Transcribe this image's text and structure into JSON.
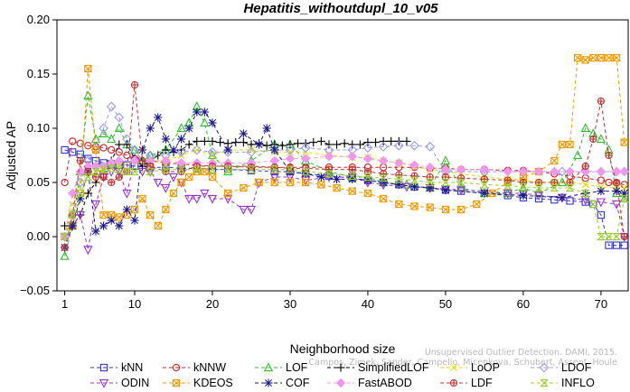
{
  "chart_data": {
    "type": "line",
    "title": "Hepatitis_withoutdupl_10_v05",
    "xlabel": "Neighborhood size",
    "ylabel": "Adjusted AP",
    "xlim": [
      0,
      73.5
    ],
    "ylim": [
      -0.05,
      0.2
    ],
    "xticks": [
      1,
      10,
      20,
      30,
      40,
      50,
      60,
      70
    ],
    "yticks": [
      -0.05,
      0.0,
      0.05,
      0.1,
      0.15,
      0.2
    ],
    "ytick_labels": [
      "−0.05",
      "0.00",
      "0.05",
      "0.10",
      "0.15",
      "0.20"
    ],
    "grid": false,
    "legend_position": "bottom",
    "watermark_lines": [
      "Unsupervised Outlier Detection. DAMI, 2015.",
      "Campos, Zimek, Sander, Campello, Micenkova, Schubert, Assent, Houle"
    ],
    "series": [
      {
        "name": "kNN",
        "color": "#3333cc",
        "marker": "square",
        "x": [
          1,
          2,
          3,
          4,
          5,
          6,
          7,
          8,
          9,
          10,
          12,
          14,
          16,
          18,
          20,
          22,
          25,
          28,
          30,
          32,
          35,
          38,
          40,
          42,
          44,
          46,
          48,
          50,
          52,
          55,
          58,
          60,
          62,
          64,
          66,
          68,
          69,
          70,
          71,
          72,
          73
        ],
        "y": [
          0.08,
          0.078,
          0.076,
          0.072,
          0.07,
          0.068,
          0.067,
          0.066,
          0.066,
          0.065,
          0.064,
          0.064,
          0.063,
          0.063,
          0.062,
          0.062,
          0.061,
          0.06,
          0.06,
          0.058,
          0.056,
          0.054,
          0.052,
          0.05,
          0.048,
          0.046,
          0.045,
          0.043,
          0.042,
          0.04,
          0.038,
          0.036,
          0.035,
          0.034,
          0.033,
          0.032,
          0.03,
          0.02,
          -0.008,
          -0.008,
          -0.008
        ]
      },
      {
        "name": "kNNW",
        "color": "#cc2222",
        "marker": "circle",
        "x": [
          1,
          2,
          3,
          4,
          5,
          6,
          7,
          8,
          9,
          10,
          12,
          14,
          16,
          18,
          20,
          22,
          25,
          28,
          30,
          32,
          35,
          38,
          40,
          42,
          44,
          46,
          48,
          50,
          52,
          55,
          58,
          60,
          62,
          64,
          66,
          68,
          70,
          71,
          72,
          73
        ],
        "y": [
          0.05,
          0.088,
          0.086,
          0.084,
          0.083,
          0.082,
          0.08,
          0.078,
          0.075,
          0.072,
          0.07,
          0.068,
          0.067,
          0.066,
          0.065,
          0.065,
          0.065,
          0.064,
          0.064,
          0.064,
          0.064,
          0.064,
          0.064,
          0.064,
          0.064,
          0.064,
          0.063,
          0.063,
          0.062,
          0.062,
          0.061,
          0.061,
          0.06,
          0.058,
          0.056,
          0.054,
          0.052,
          0.05,
          0.049,
          0.048
        ]
      },
      {
        "name": "LOF",
        "color": "#33bb33",
        "marker": "triangle",
        "x": [
          1,
          2,
          3,
          4,
          5,
          6,
          7,
          8,
          9,
          10,
          11,
          12,
          14,
          16,
          17,
          18,
          19,
          20,
          22,
          25,
          28,
          30,
          32,
          35,
          38,
          40,
          42,
          45,
          48,
          50,
          52,
          55,
          58,
          60,
          62,
          65,
          67,
          68,
          69,
          70,
          71,
          72,
          73
        ],
        "y": [
          -0.018,
          0.01,
          0.06,
          0.13,
          0.09,
          0.095,
          0.09,
          0.1,
          0.085,
          0.08,
          0.07,
          0.075,
          0.08,
          0.1,
          0.105,
          0.12,
          0.105,
          0.075,
          0.06,
          0.07,
          0.085,
          0.085,
          0.07,
          0.06,
          0.055,
          0.055,
          0.05,
          0.048,
          0.045,
          0.07,
          0.045,
          0.04,
          0.04,
          0.045,
          0.04,
          0.05,
          0.075,
          0.1,
          0.095,
          0.09,
          0.08,
          0.04,
          0.035
        ]
      },
      {
        "name": "SimplifiedLOF",
        "color": "#000000",
        "marker": "plus",
        "x": [
          1,
          2,
          3,
          4,
          5,
          6,
          7,
          8,
          9,
          10,
          11,
          12,
          13,
          14,
          15,
          16,
          17,
          18,
          19,
          20,
          21,
          22,
          23,
          24,
          25,
          26,
          27,
          28,
          29,
          30,
          31,
          32,
          33,
          34,
          35,
          36,
          37,
          38,
          39,
          40,
          41,
          42,
          43,
          44,
          45
        ],
        "y": [
          0.01,
          0.01,
          0.02,
          0.04,
          0.05,
          0.06,
          0.07,
          0.085,
          0.085,
          0.072,
          0.065,
          0.07,
          0.075,
          0.08,
          0.078,
          0.08,
          0.085,
          0.088,
          0.088,
          0.088,
          0.087,
          0.086,
          0.087,
          0.087,
          0.085,
          0.086,
          0.084,
          0.085,
          0.084,
          0.085,
          0.086,
          0.086,
          0.087,
          0.088,
          0.085,
          0.085,
          0.086,
          0.085,
          0.085,
          0.087,
          0.087,
          0.088,
          0.088,
          0.088,
          0.088
        ]
      },
      {
        "name": "LoOP",
        "color": "#dddd00",
        "marker": "x",
        "x": [
          1,
          2,
          3,
          4,
          5,
          6,
          7,
          8,
          10,
          12,
          14,
          16,
          18,
          20,
          22,
          25,
          28,
          30,
          32,
          35,
          38,
          40,
          42,
          44,
          46,
          48,
          50,
          52,
          55,
          58,
          60,
          62,
          64,
          66,
          68,
          70,
          72,
          73
        ],
        "y": [
          0.0,
          0.03,
          0.05,
          0.06,
          0.06,
          0.06,
          0.065,
          0.065,
          0.07,
          0.068,
          0.07,
          0.075,
          0.08,
          0.075,
          0.08,
          0.08,
          0.078,
          0.078,
          0.078,
          0.075,
          0.073,
          0.073,
          0.07,
          0.068,
          0.065,
          0.062,
          0.06,
          0.058,
          0.055,
          0.053,
          0.052,
          0.05,
          0.05,
          0.05,
          0.048,
          0.046,
          0.045,
          0.045
        ]
      },
      {
        "name": "LDOF",
        "color": "#9999ee",
        "marker": "diamond",
        "x": [
          1,
          2,
          3,
          4,
          5,
          6,
          7,
          8,
          9,
          10,
          12,
          14,
          16,
          18,
          20,
          22,
          25,
          28,
          30,
          32,
          35,
          38,
          40,
          42,
          44,
          46,
          48,
          50,
          55,
          60,
          65,
          68,
          70,
          72,
          73
        ],
        "y": [
          0.0,
          0.02,
          0.05,
          0.07,
          0.08,
          0.1,
          0.12,
          0.11,
          0.09,
          0.08,
          0.075,
          0.075,
          0.078,
          0.08,
          0.078,
          0.078,
          0.078,
          0.08,
          0.08,
          0.082,
          0.08,
          0.08,
          0.082,
          0.083,
          0.084,
          0.084,
          0.083,
          0.06,
          0.06,
          0.06,
          0.06,
          0.06,
          0.06,
          0.06,
          0.06
        ]
      },
      {
        "name": "ODIN",
        "color": "#9933cc",
        "marker": "triangle-down",
        "x": [
          1,
          2,
          3,
          4,
          5,
          6,
          7,
          8,
          9,
          10,
          11,
          12,
          13,
          14,
          15,
          16,
          17,
          18,
          19,
          20,
          22,
          24,
          25,
          26,
          28,
          30,
          32,
          35,
          38,
          40,
          42,
          45,
          48,
          50,
          52,
          55,
          58,
          60,
          62,
          65,
          68,
          70,
          72,
          73
        ],
        "y": [
          0.0,
          0.01,
          0.02,
          -0.012,
          0.03,
          0.055,
          0.06,
          0.06,
          0.04,
          0.07,
          0.06,
          0.06,
          0.05,
          0.045,
          0.055,
          0.05,
          0.035,
          0.035,
          0.04,
          0.035,
          0.035,
          0.025,
          0.025,
          0.05,
          0.055,
          0.055,
          0.052,
          0.055,
          0.055,
          0.05,
          0.048,
          0.046,
          0.045,
          0.044,
          0.043,
          0.042,
          0.04,
          0.04,
          0.038,
          0.036,
          0.034,
          0.032,
          0.03,
          0.0
        ]
      },
      {
        "name": "KDEOS",
        "color": "#ee9900",
        "marker": "square-x",
        "x": [
          1,
          2,
          3,
          4,
          5,
          6,
          7,
          8,
          9,
          10,
          11,
          12,
          13,
          14,
          15,
          16,
          17,
          18,
          19,
          20,
          22,
          24,
          26,
          28,
          30,
          32,
          34,
          36,
          38,
          40,
          42,
          44,
          46,
          48,
          50,
          52,
          54,
          56,
          58,
          60,
          62,
          64,
          65,
          66,
          67,
          68,
          69,
          70,
          71,
          72,
          73
        ],
        "y": [
          0.0,
          0.01,
          0.04,
          0.155,
          0.08,
          0.02,
          0.02,
          0.018,
          0.02,
          0.025,
          0.035,
          0.02,
          0.01,
          0.025,
          0.04,
          0.05,
          0.055,
          0.06,
          0.06,
          0.055,
          0.04,
          0.045,
          0.05,
          0.05,
          0.05,
          0.05,
          0.048,
          0.045,
          0.042,
          0.04,
          0.035,
          0.03,
          0.028,
          0.027,
          0.025,
          0.025,
          0.03,
          0.04,
          0.05,
          0.055,
          0.06,
          0.07,
          0.085,
          0.085,
          0.165,
          0.163,
          0.165,
          0.165,
          0.165,
          0.165,
          0.087
        ]
      },
      {
        "name": "COF",
        "color": "#1a1a88",
        "marker": "star",
        "x": [
          1,
          2,
          3,
          4,
          5,
          6,
          7,
          8,
          9,
          10,
          11,
          12,
          13,
          14,
          15,
          16,
          17,
          18,
          19,
          20,
          22,
          24,
          26,
          27,
          28,
          30,
          32,
          34,
          36,
          38,
          40,
          42,
          44,
          46,
          48,
          50,
          55,
          60,
          65,
          68,
          70,
          72,
          73
        ],
        "y": [
          -0.01,
          0.01,
          0.035,
          0.06,
          0.005,
          0.01,
          0.015,
          0.01,
          0.025,
          0.015,
          0.08,
          0.1,
          0.11,
          0.09,
          0.08,
          0.09,
          0.1,
          0.115,
          0.115,
          0.105,
          0.08,
          0.095,
          0.085,
          0.1,
          0.08,
          0.06,
          0.058,
          0.055,
          0.053,
          0.053,
          0.052,
          0.05,
          0.048,
          0.046,
          0.045,
          0.043,
          0.04,
          0.038,
          0.036,
          0.04,
          0.042,
          0.042,
          0.04
        ]
      },
      {
        "name": "FastABOD",
        "color": "#ee99ee",
        "marker": "diamond-filled",
        "x": [
          1,
          2,
          3,
          4,
          5,
          6,
          7,
          8,
          10,
          12,
          14,
          16,
          18,
          20,
          22,
          25,
          28,
          30,
          32,
          35,
          38,
          40,
          42,
          44,
          46,
          48,
          50,
          52,
          55,
          58,
          60,
          62,
          64,
          66,
          68,
          70,
          72,
          73
        ],
        "y": [
          0.0,
          0.04,
          0.06,
          0.065,
          0.065,
          0.065,
          0.068,
          0.07,
          0.07,
          0.07,
          0.07,
          0.068,
          0.068,
          0.068,
          0.068,
          0.068,
          0.07,
          0.072,
          0.072,
          0.074,
          0.074,
          0.072,
          0.07,
          0.068,
          0.066,
          0.064,
          0.062,
          0.062,
          0.062,
          0.06,
          0.06,
          0.06,
          0.06,
          0.06,
          0.06,
          0.06,
          0.06,
          0.06
        ]
      },
      {
        "name": "LDF",
        "color": "#bb3333",
        "marker": "circle-plus",
        "x": [
          1,
          2,
          3,
          4,
          5,
          6,
          7,
          8,
          9,
          10,
          11,
          12,
          14,
          16,
          18,
          20,
          22,
          25,
          28,
          30,
          32,
          35,
          38,
          40,
          42,
          44,
          46,
          48,
          50,
          52,
          55,
          58,
          60,
          62,
          64,
          66,
          68,
          69,
          70,
          71,
          72,
          73
        ],
        "y": [
          -0.01,
          0.02,
          0.07,
          0.06,
          0.055,
          0.055,
          0.05,
          0.055,
          0.06,
          0.14,
          0.07,
          0.065,
          0.06,
          0.06,
          0.065,
          0.065,
          0.065,
          0.064,
          0.064,
          0.063,
          0.063,
          0.062,
          0.062,
          0.06,
          0.058,
          0.057,
          0.056,
          0.055,
          0.055,
          0.054,
          0.053,
          0.052,
          0.05,
          0.05,
          0.05,
          0.05,
          0.065,
          0.09,
          0.125,
          0.075,
          0.05,
          0.0
        ]
      },
      {
        "name": "INFLO",
        "color": "#99cc33",
        "marker": "hourglass",
        "x": [
          1,
          2,
          3,
          4,
          5,
          6,
          7,
          8,
          9,
          10,
          12,
          14,
          16,
          18,
          20,
          22,
          25,
          28,
          30,
          32,
          35,
          38,
          40,
          42,
          44,
          46,
          48,
          50,
          52,
          55,
          58,
          60,
          62,
          64,
          66,
          68,
          69,
          70,
          71,
          72,
          73
        ],
        "y": [
          0.0,
          0.02,
          0.04,
          0.055,
          0.06,
          0.062,
          0.063,
          0.062,
          0.06,
          0.06,
          0.06,
          0.062,
          0.062,
          0.062,
          0.062,
          0.062,
          0.062,
          0.062,
          0.062,
          0.06,
          0.058,
          0.056,
          0.055,
          0.054,
          0.053,
          0.052,
          0.05,
          0.05,
          0.05,
          0.048,
          0.047,
          0.046,
          0.045,
          0.045,
          0.045,
          0.04,
          0.03,
          0.0,
          0.0,
          0.0,
          0.035
        ]
      }
    ]
  }
}
